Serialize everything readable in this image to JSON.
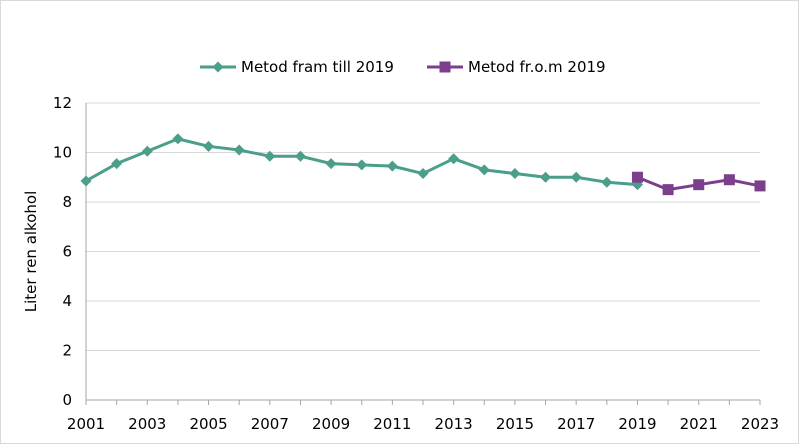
{
  "chart_data": {
    "type": "line",
    "ylabel": "Liter ren alkohol",
    "ylim": [
      0,
      12
    ],
    "yticks": [
      0,
      2,
      4,
      6,
      8,
      10,
      12
    ],
    "xlim": [
      2001,
      2023
    ],
    "xticks": [
      2001,
      2003,
      2005,
      2007,
      2009,
      2011,
      2013,
      2015,
      2017,
      2019,
      2021,
      2023
    ],
    "grid": "horizontal",
    "legend": "top-center",
    "series": [
      {
        "name": "Metod fram till 2019",
        "color": "#4a9e8a",
        "marker": "diamond",
        "x": [
          2001,
          2002,
          2003,
          2004,
          2005,
          2006,
          2007,
          2008,
          2009,
          2010,
          2011,
          2012,
          2013,
          2014,
          2015,
          2016,
          2017,
          2018,
          2019
        ],
        "y": [
          8.85,
          9.55,
          10.05,
          10.55,
          10.25,
          10.1,
          9.85,
          9.85,
          9.55,
          9.5,
          9.45,
          9.15,
          9.75,
          9.3,
          9.15,
          9.0,
          9.0,
          8.8,
          8.7
        ]
      },
      {
        "name": "Metod fr.o.m 2019",
        "color": "#7b3f8c",
        "marker": "square",
        "x": [
          2019,
          2020,
          2021,
          2022,
          2023
        ],
        "y": [
          9.0,
          8.5,
          8.7,
          8.9,
          8.65
        ]
      }
    ]
  }
}
